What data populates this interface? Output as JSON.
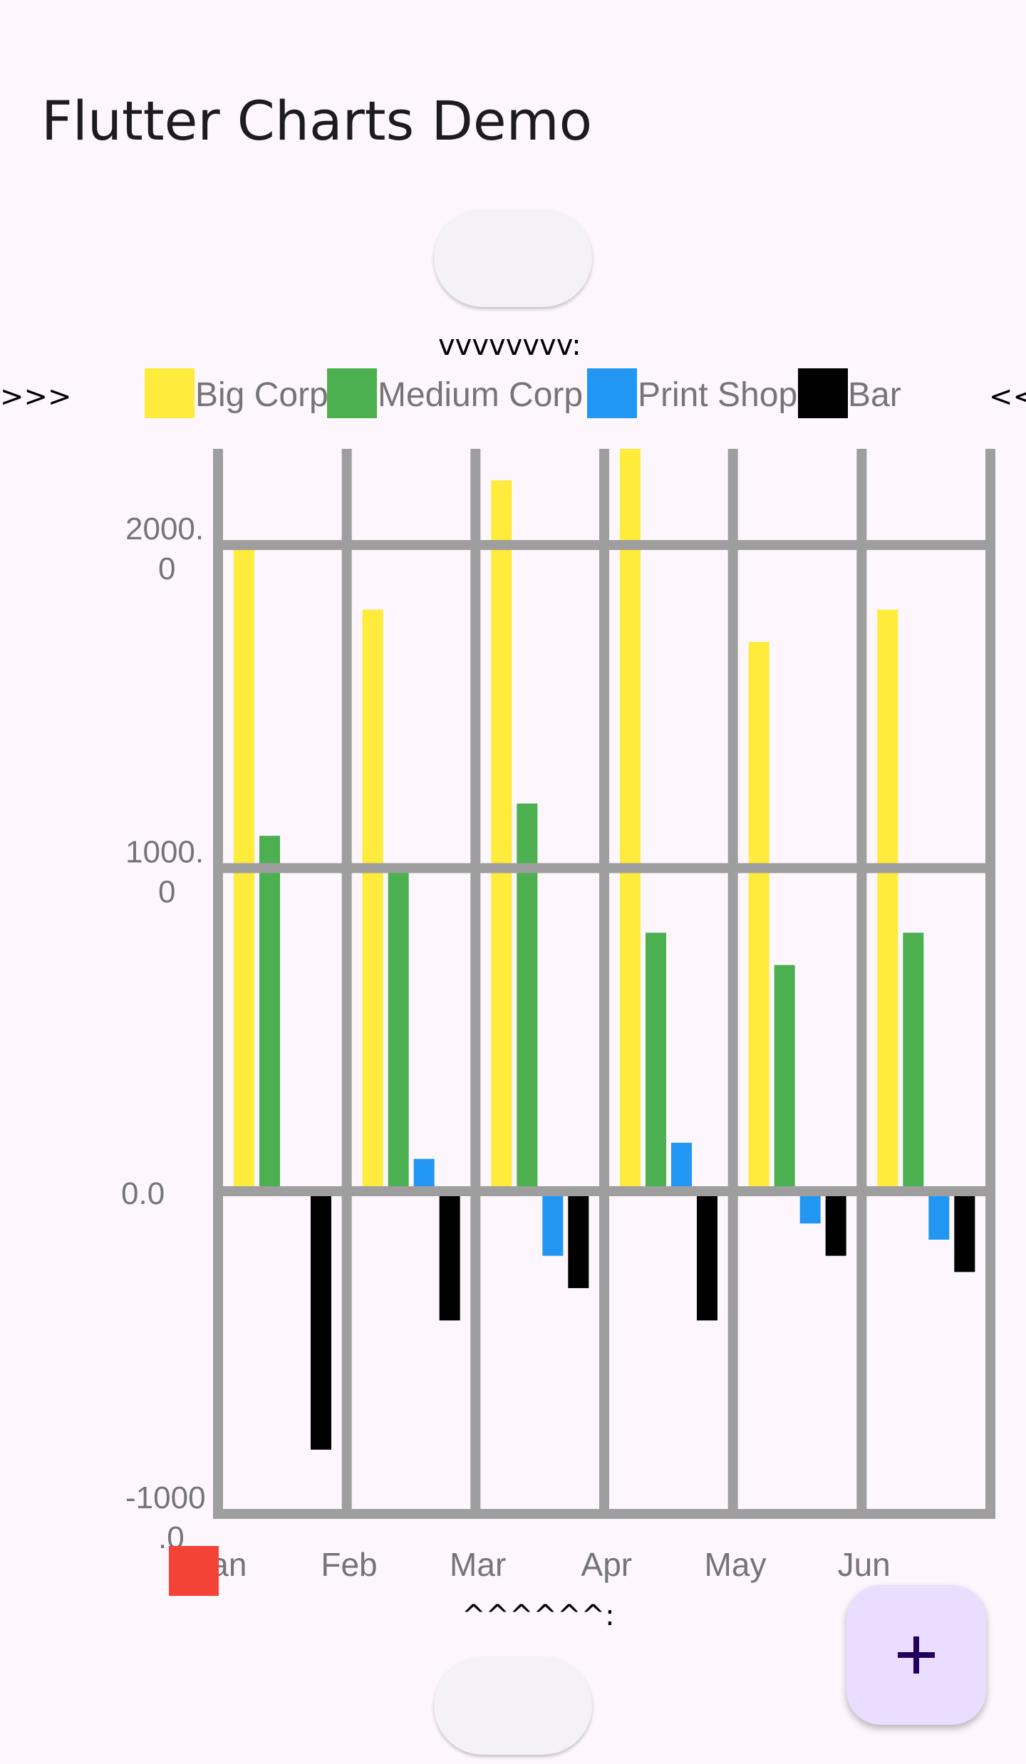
{
  "app": {
    "title": "Flutter Charts Demo"
  },
  "markers": {
    "top": "vvvvvvvv:",
    "bottom": "^^^^^^:",
    "left": ">>>",
    "right": "<<"
  },
  "fab": {
    "icon": "plus-icon",
    "color": "#eaddff",
    "icon_color": "#21005d"
  },
  "chart_data": {
    "type": "bar",
    "categories": [
      "Jan",
      "Feb",
      "Mar",
      "Apr",
      "May",
      "Jun"
    ],
    "series": [
      {
        "name": "Big Corp",
        "color": "#ffeb3b",
        "values": [
          2000,
          1800,
          2200,
          2300,
          1700,
          1800
        ]
      },
      {
        "name": "Medium Corp",
        "color": "#4caf50",
        "values": [
          1100,
          1000,
          1200,
          800,
          700,
          800
        ]
      },
      {
        "name": "Print Shop",
        "color": "#2196f3",
        "values": [
          0,
          100,
          -200,
          150,
          -100,
          -150
        ]
      },
      {
        "name": "Bar",
        "color": "#000000",
        "values": [
          -800,
          -400,
          -300,
          -400,
          -200,
          -250
        ]
      }
    ],
    "y_tick_labels": [
      "-1000\n.0",
      "0.0",
      "1000.\n0",
      "2000.\n0"
    ],
    "y_ticks": [
      -1000,
      0,
      1000,
      2000
    ],
    "ylim": [
      -1000,
      2300
    ],
    "grid": true,
    "grid_color": "#9e9e9e",
    "x_axis_indicator_color": "#f44336",
    "legend_position": "top"
  }
}
